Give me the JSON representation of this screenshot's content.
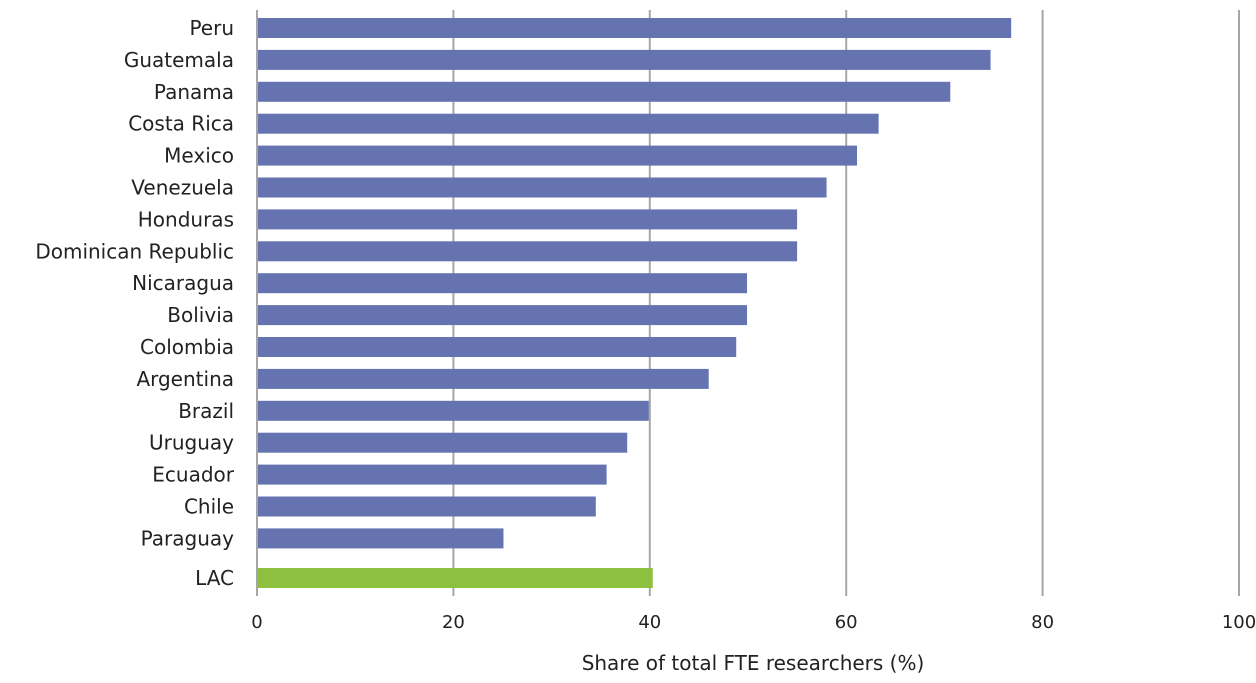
{
  "chart_data": {
    "type": "bar",
    "orientation": "horizontal",
    "categories": [
      "Peru",
      "Guatemala",
      "Panama",
      "Costa Rica",
      "Mexico",
      "Venezuela",
      "Honduras",
      "Dominican Republic",
      "Nicaragua",
      "Bolivia",
      "Colombia",
      "Argentina",
      "Brazil",
      "Uruguay",
      "Ecuador",
      "Chile",
      "Paraguay",
      "LAC"
    ],
    "values": [
      76.8,
      74.7,
      70.6,
      63.3,
      61.1,
      58.0,
      55.0,
      55.0,
      49.9,
      49.9,
      48.8,
      46.0,
      39.9,
      37.7,
      35.6,
      34.5,
      25.1,
      40.3
    ],
    "bar_colors": [
      "#6574b0",
      "#6574b0",
      "#6574b0",
      "#6574b0",
      "#6574b0",
      "#6574b0",
      "#6574b0",
      "#6574b0",
      "#6574b0",
      "#6574b0",
      "#6574b0",
      "#6574b0",
      "#6574b0",
      "#6574b0",
      "#6574b0",
      "#6574b0",
      "#6574b0",
      "#8dc03f"
    ],
    "xlim": [
      0,
      100
    ],
    "xticks": [
      0,
      20,
      40,
      60,
      80,
      100
    ],
    "xlabel": "Share of total FTE researchers (%)",
    "ylabel": "",
    "title": "",
    "grid": "vertical",
    "legend": "none"
  }
}
